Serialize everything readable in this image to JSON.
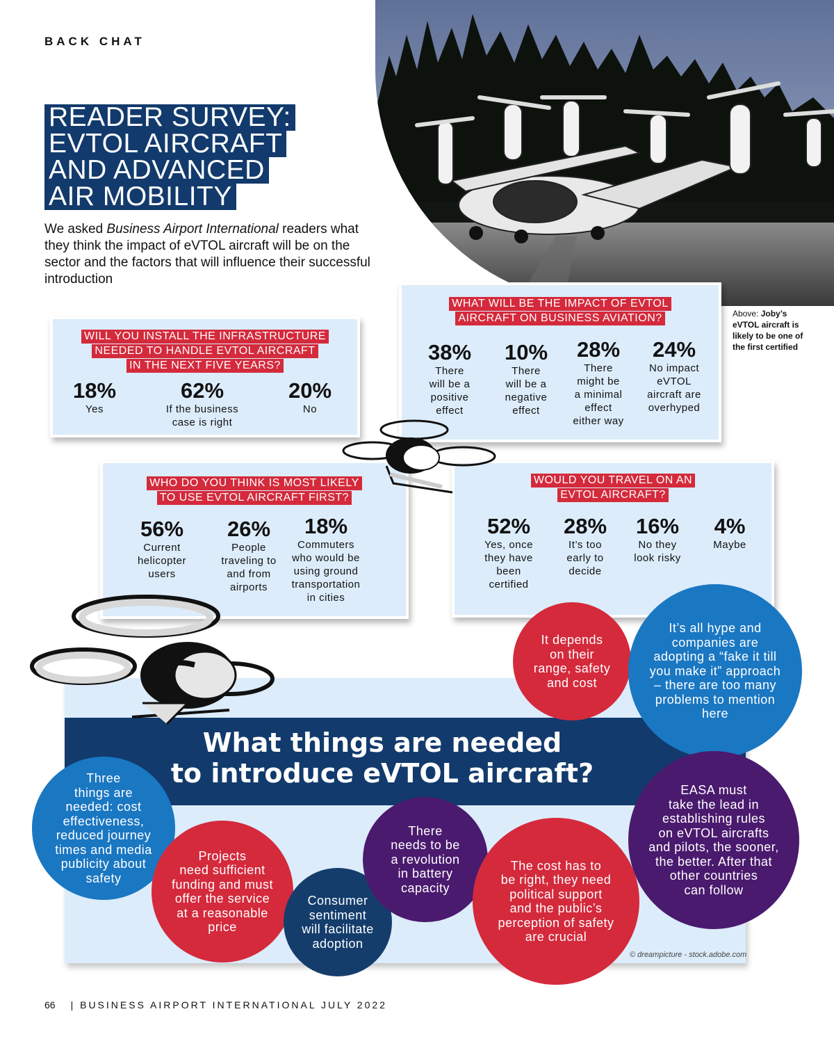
{
  "section_label": "BACK CHAT",
  "title_lines": [
    "READER SURVEY:",
    "EVTOL AIRCRAFT",
    "AND ADVANCED",
    "AIR MOBILITY"
  ],
  "intro": {
    "before": "We asked ",
    "italic": "Business Airport International",
    "after": " readers what they think the impact of eVTOL aircraft will be on the sector and the factors that will influence their successful introduction"
  },
  "caption": {
    "prefix": "Above: ",
    "bold": "Joby’s eVTOL aircraft is likely to be one of the first certified"
  },
  "survey_infrastructure": {
    "question_lines": [
      "WILL YOU INSTALL THE INFRASTRUCTURE",
      "NEEDED TO HANDLE EVTOL AIRCRAFT",
      "IN THE NEXT FIVE YEARS?"
    ],
    "answers": [
      {
        "pct": "18%",
        "label_lines": [
          "Yes"
        ]
      },
      {
        "pct": "62%",
        "label_lines": [
          "If the business",
          "case is right"
        ]
      },
      {
        "pct": "20%",
        "label_lines": [
          "No"
        ]
      }
    ]
  },
  "survey_impact": {
    "question_lines": [
      "WHAT WILL BE THE IMPACT OF EVTOL",
      "AIRCRAFT ON BUSINESS AVIATION?"
    ],
    "answers": [
      {
        "pct": "38%",
        "label_lines": [
          "There",
          "will be a",
          "positive",
          "effect"
        ]
      },
      {
        "pct": "10%",
        "label_lines": [
          "There",
          "will be a",
          "negative",
          "effect"
        ]
      },
      {
        "pct": "28%",
        "label_lines": [
          "There",
          "might be",
          "a minimal",
          "effect",
          "either way"
        ]
      },
      {
        "pct": "24%",
        "label_lines": [
          "No impact",
          "eVTOL",
          "aircraft are",
          "overhyped"
        ]
      }
    ]
  },
  "survey_users": {
    "question_lines": [
      "WHO DO YOU THINK IS MOST LIKELY",
      "TO USE EVTOL AIRCRAFT FIRST?"
    ],
    "answers": [
      {
        "pct": "56%",
        "label_lines": [
          "Current",
          "helicopter",
          "users"
        ]
      },
      {
        "pct": "26%",
        "label_lines": [
          "People",
          "traveling to",
          "and from",
          "airports"
        ]
      },
      {
        "pct": "18%",
        "label_lines": [
          "Commuters",
          "who would be",
          "using ground",
          "transportation",
          "in cities"
        ]
      }
    ]
  },
  "survey_travel": {
    "question_lines": [
      "WOULD YOU TRAVEL ON AN",
      "EVTOL AIRCRAFT?"
    ],
    "answers": [
      {
        "pct": "52%",
        "label_lines": [
          "Yes, once",
          "they have",
          "been",
          "certified"
        ]
      },
      {
        "pct": "28%",
        "label_lines": [
          "It’s too",
          "early to",
          "decide"
        ]
      },
      {
        "pct": "16%",
        "label_lines": [
          "No they",
          "look risky"
        ]
      },
      {
        "pct": "4%",
        "label_lines": [
          "Maybe"
        ]
      }
    ]
  },
  "needs": {
    "title_lines": [
      "What things are needed",
      "to introduce eVTOL aircraft?"
    ],
    "bubbles": [
      {
        "color": "#d42a3c",
        "lines": [
          "It depends",
          "on their",
          "range, safety",
          "and cost"
        ]
      },
      {
        "color": "#1a77c2",
        "lines": [
          "It’s all hype and",
          "companies are",
          "adopting a “fake it till",
          "you make it” approach",
          "– there are too many",
          "problems to mention",
          "here"
        ]
      },
      {
        "color": "#4a1a6e",
        "lines": [
          "EASA must",
          "take the lead in",
          "establishing rules",
          "on eVTOL aircrafts",
          "and pilots, the sooner,",
          "the better. After that",
          "other countries",
          "can follow"
        ]
      },
      {
        "color": "#1a77c2",
        "lines": [
          "Three",
          "things are",
          "needed: cost",
          "effectiveness,",
          "reduced journey",
          "times and media",
          "publicity about",
          "safety"
        ]
      },
      {
        "color": "#d42a3c",
        "lines": [
          "Projects",
          "need sufficient",
          "funding and must",
          "offer the service",
          "at a reasonable",
          "price"
        ]
      },
      {
        "color": "#143d6c",
        "lines": [
          "Consumer",
          "sentiment",
          "will facilitate",
          "adoption"
        ]
      },
      {
        "color": "#4a1a6e",
        "lines": [
          "There",
          "needs to be",
          "a revolution",
          "in battery",
          "capacity"
        ]
      },
      {
        "color": "#d42a3c",
        "lines": [
          "The cost has to",
          "be right, they need",
          "political support",
          "and the public’s",
          "perception of safety",
          "are crucial"
        ]
      }
    ]
  },
  "image_credit": "© dreampicture - stock.adobe.com",
  "footer": {
    "page_number": "66",
    "publication": "| BUSINESS AIRPORT INTERNATIONAL JULY 2022"
  },
  "icons": [
    "evtol-photo",
    "drone-illustration-small",
    "drone-illustration-large"
  ]
}
